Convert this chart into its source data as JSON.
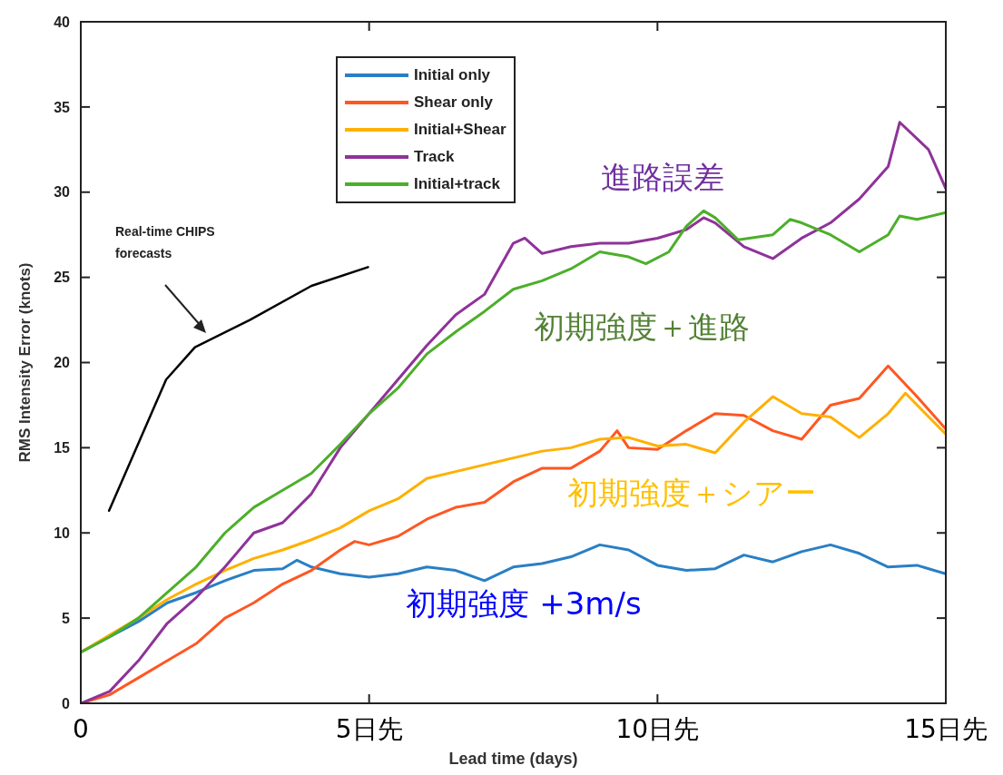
{
  "chart_data": {
    "type": "line",
    "xlabel": "Lead time (days)",
    "ylabel": "RMS Intensity Error (knots)",
    "xlim": [
      0,
      15
    ],
    "xticks": [
      0,
      {
        "value": 5,
        "label": "5日先"
      },
      {
        "value": 10,
        "label": "10日先"
      },
      {
        "value": 15,
        "label": "15日先"
      }
    ],
    "ylim": [
      0,
      40
    ],
    "yticks": [
      0,
      5,
      10,
      15,
      20,
      25,
      30,
      35,
      40
    ],
    "grid": false,
    "legend": "top",
    "marker": "none",
    "line_style": "solid",
    "series": [
      {
        "name": "Initial only",
        "color": "#2a7fc4",
        "x": [
          0,
          0.5,
          1,
          1.5,
          2,
          2.5,
          3,
          3.5,
          3.75,
          4,
          4.5,
          5,
          5.5,
          6,
          6.5,
          7,
          7.5,
          8,
          8.5,
          9,
          9.5,
          10,
          10.5,
          11,
          11.5,
          12,
          12.5,
          13,
          13.5,
          14,
          14.5,
          15
        ],
        "values": [
          3.0,
          3.9,
          4.8,
          5.9,
          6.5,
          7.2,
          7.8,
          7.9,
          8.4,
          8.0,
          7.6,
          7.4,
          7.6,
          8.0,
          7.8,
          7.2,
          8.0,
          8.2,
          8.6,
          9.3,
          9.0,
          8.1,
          7.8,
          7.9,
          8.7,
          8.3,
          8.9,
          9.3,
          8.8,
          8.0,
          8.1,
          7.6
        ]
      },
      {
        "name": "Shear only",
        "color": "#ff5722",
        "x": [
          0,
          0.5,
          1,
          1.5,
          2,
          2.5,
          3,
          3.5,
          4,
          4.5,
          4.75,
          5,
          5.5,
          6,
          6.5,
          7,
          7.5,
          8,
          8.5,
          9,
          9.3,
          9.5,
          10,
          10.5,
          11,
          11.5,
          12,
          12.5,
          13,
          13.5,
          14,
          14.5,
          15
        ],
        "values": [
          0,
          0.5,
          1.5,
          2.5,
          3.5,
          5.0,
          5.9,
          7.0,
          7.8,
          9.0,
          9.5,
          9.3,
          9.8,
          10.8,
          11.5,
          11.8,
          13.0,
          13.8,
          13.8,
          14.8,
          16.0,
          15.0,
          14.9,
          16.0,
          17.0,
          16.9,
          16.0,
          15.5,
          17.5,
          17.9,
          19.8,
          18.0,
          16.1
        ]
      },
      {
        "name": "Initial+Shear",
        "color": "#ffb000",
        "x": [
          0,
          0.5,
          1,
          1.5,
          2,
          2.5,
          3,
          3.5,
          4,
          4.5,
          5,
          5.5,
          6,
          6.5,
          7,
          7.5,
          8,
          8.5,
          9,
          9.5,
          10,
          10.5,
          11,
          11.5,
          12,
          12.5,
          13,
          13.5,
          14,
          14.3,
          15
        ],
        "values": [
          3.0,
          4.0,
          5.0,
          6.1,
          7.0,
          7.8,
          8.5,
          9.0,
          9.6,
          10.3,
          11.3,
          12.0,
          13.2,
          13.6,
          14.0,
          14.4,
          14.8,
          15.0,
          15.5,
          15.6,
          15.1,
          15.2,
          14.7,
          16.5,
          18.0,
          17.0,
          16.8,
          15.6,
          17.0,
          18.2,
          15.8
        ]
      },
      {
        "name": "Track",
        "color": "#8e3399",
        "x": [
          0,
          0.5,
          1,
          1.5,
          2,
          2.5,
          3,
          3.5,
          4,
          4.5,
          5,
          5.5,
          6,
          6.5,
          7,
          7.5,
          7.7,
          8,
          8.5,
          9,
          9.5,
          10,
          10.5,
          10.8,
          11,
          11.5,
          12,
          12.5,
          13,
          13.5,
          14,
          14.2,
          14.7,
          15
        ],
        "values": [
          0,
          0.7,
          2.5,
          4.7,
          6.2,
          8.0,
          10.0,
          10.6,
          12.3,
          15.0,
          17.0,
          19.0,
          21.0,
          22.8,
          24.0,
          27.0,
          27.3,
          26.4,
          26.8,
          27.0,
          27.0,
          27.3,
          27.8,
          28.5,
          28.2,
          26.8,
          26.1,
          27.3,
          28.2,
          29.6,
          31.5,
          34.1,
          32.5,
          30.2
        ]
      },
      {
        "name": "Initial+track",
        "color": "#4caf2a",
        "x": [
          0,
          0.5,
          1,
          1.5,
          2,
          2.5,
          3,
          3.5,
          4,
          4.5,
          5,
          5.5,
          6,
          6.5,
          7,
          7.5,
          8,
          8.5,
          9,
          9.5,
          9.8,
          10.2,
          10.5,
          10.8,
          11,
          11.4,
          12,
          12.3,
          12.5,
          13,
          13.5,
          14,
          14.2,
          14.5,
          15
        ],
        "values": [
          3.0,
          3.9,
          5.0,
          6.5,
          8.0,
          10.0,
          11.5,
          12.5,
          13.5,
          15.2,
          17.0,
          18.5,
          20.5,
          21.8,
          23.0,
          24.3,
          24.8,
          25.5,
          26.5,
          26.2,
          25.8,
          26.5,
          28.0,
          28.9,
          28.5,
          27.2,
          27.5,
          28.4,
          28.2,
          27.5,
          26.5,
          27.5,
          28.6,
          28.4,
          28.8
        ]
      },
      {
        "color": "#000000",
        "x": [
          0.49,
          1.48,
          1.98,
          2.93,
          4.0,
          4.98
        ],
        "values": [
          11.3,
          19.0,
          20.9,
          22.5,
          24.5,
          25.6
        ]
      }
    ],
    "annotations": [
      "Real-time CHIPS forecasts",
      "進路誤差",
      "初期強度＋進路",
      "初期強度＋シアー",
      "初期強度 +3m/s"
    ]
  }
}
